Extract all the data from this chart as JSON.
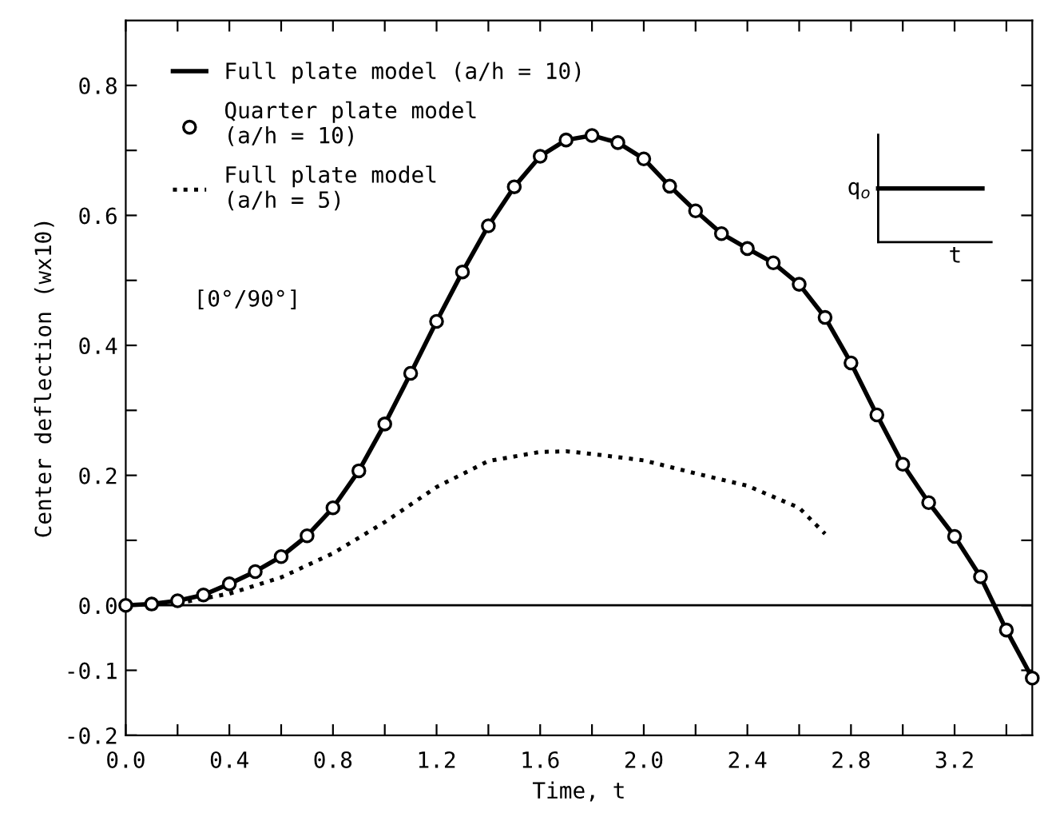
{
  "chart_data": {
    "type": "line",
    "xlabel": "Time, t",
    "ylabel": "Center deflection (wx10)",
    "xlim": [
      0,
      3.5
    ],
    "ylim": [
      -0.2,
      0.9
    ],
    "xticks": [
      {
        "value": 0,
        "label": "0.0"
      },
      {
        "value": 0.2,
        "label": null
      },
      0.4,
      {
        "value": 0.6,
        "label": null
      },
      0.8,
      {
        "value": 1.0,
        "label": null
      },
      1.2,
      {
        "value": 1.4,
        "label": null
      },
      1.6,
      {
        "value": 1.8,
        "label": null
      },
      {
        "value": 2.0,
        "label": "2.0"
      },
      {
        "value": 2.2,
        "label": null
      },
      2.4,
      {
        "value": 2.6,
        "label": null
      },
      2.8,
      {
        "value": 3.0,
        "label": null
      },
      3.2,
      {
        "value": 3.4,
        "label": null
      }
    ],
    "yticks": [
      {
        "value": -0.2,
        "label": "-0.2"
      },
      {
        "value": -0.1,
        "label": "-0.1"
      },
      {
        "value": 0,
        "label": "0.0"
      },
      {
        "value": 0.1,
        "label": null
      },
      0.2,
      {
        "value": 0.3,
        "label": null
      },
      0.4,
      {
        "value": 0.5,
        "label": null
      },
      0.6,
      {
        "value": 0.7,
        "label": null
      },
      0.8
    ],
    "grid": false,
    "legend": "top left",
    "ref_lines": [
      {
        "axis": "y",
        "value": 0,
        "color": "#000000",
        "line_style": "solid"
      }
    ],
    "annotations": [
      "[0°/90°]",
      "q$_{o}$",
      "t"
    ],
    "series": [
      {
        "name": "Full plate model (a/h = 10)",
        "color": "#000000",
        "line_style": "solid",
        "marker": "none",
        "x": [
          0,
          0.1,
          0.2,
          0.3,
          0.4,
          0.5,
          0.6,
          0.7,
          0.8,
          0.9,
          1.0,
          1.1,
          1.2,
          1.3,
          1.4,
          1.5,
          1.6,
          1.7,
          1.8,
          1.9,
          2.0,
          2.1,
          2.2,
          2.3,
          2.4,
          2.5,
          2.6,
          2.7,
          2.8,
          2.9,
          3.0,
          3.1,
          3.2,
          3.3,
          3.4,
          3.5
        ],
        "values": [
          0,
          0.002,
          0.007,
          0.016,
          0.033,
          0.052,
          0.075,
          0.107,
          0.15,
          0.207,
          0.279,
          0.357,
          0.437,
          0.513,
          0.584,
          0.644,
          0.691,
          0.716,
          0.723,
          0.712,
          0.687,
          0.645,
          0.607,
          0.572,
          0.549,
          0.527,
          0.494,
          0.443,
          0.373,
          0.293,
          0.217,
          0.158,
          0.106,
          0.044,
          -0.038,
          -0.112
        ]
      },
      {
        "name": "Quarter plate model\n(a/h = 10)",
        "type": "scatter",
        "color": "#000000",
        "marker": "circle",
        "x": [
          0,
          0.1,
          0.2,
          0.3,
          0.4,
          0.5,
          0.6,
          0.7,
          0.8,
          0.9,
          1.0,
          1.1,
          1.2,
          1.3,
          1.4,
          1.5,
          1.6,
          1.7,
          1.8,
          1.9,
          2.0,
          2.1,
          2.2,
          2.3,
          2.4,
          2.5,
          2.6,
          2.7,
          2.8,
          2.9,
          3.0,
          3.1,
          3.2,
          3.3,
          3.4,
          3.5
        ],
        "values": [
          0,
          0.002,
          0.007,
          0.016,
          0.033,
          0.052,
          0.075,
          0.107,
          0.15,
          0.207,
          0.279,
          0.357,
          0.437,
          0.513,
          0.584,
          0.644,
          0.691,
          0.716,
          0.723,
          0.712,
          0.687,
          0.645,
          0.607,
          0.572,
          0.549,
          0.527,
          0.494,
          0.443,
          0.373,
          0.293,
          0.217,
          0.158,
          0.106,
          0.044,
          -0.038,
          -0.112
        ]
      },
      {
        "name": "Full plate model\n(a/h = 5)",
        "color": "#000000",
        "line_style": "dotted",
        "marker": "none",
        "x": [
          0.2,
          0.4,
          0.6,
          0.8,
          1.0,
          1.2,
          1.4,
          1.6,
          1.7,
          1.8,
          2.0,
          2.2,
          2.4,
          2.6,
          2.7
        ],
        "values": [
          0.003,
          0.018,
          0.043,
          0.08,
          0.128,
          0.182,
          0.222,
          0.236,
          0.237,
          0.233,
          0.223,
          0.203,
          0.184,
          0.15,
          0.11
        ]
      }
    ]
  }
}
